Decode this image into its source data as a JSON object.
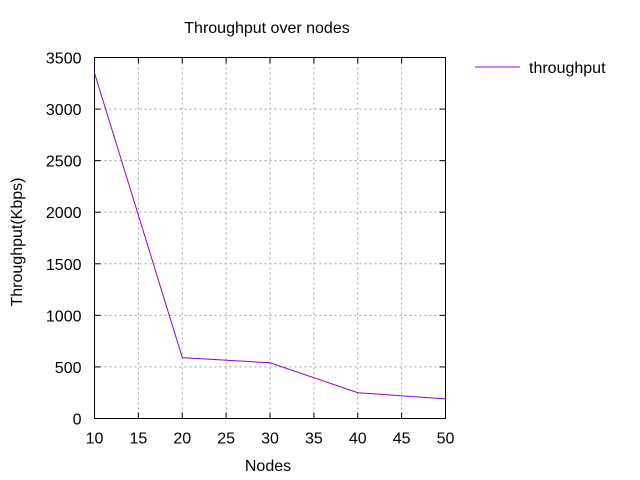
{
  "chart_data": {
    "type": "line",
    "title": "Throughput over nodes",
    "xlabel": "Nodes",
    "ylabel": "Throughput(Kbps)",
    "xlim": [
      10,
      50
    ],
    "ylim": [
      0,
      3500
    ],
    "x_ticks": [
      "10",
      "15",
      "20",
      "25",
      "30",
      "35",
      "40",
      "45",
      "50"
    ],
    "y_ticks": [
      "0",
      "500",
      "1000",
      "1500",
      "2000",
      "2500",
      "3000",
      "3500"
    ],
    "grid": true,
    "legend_position": "top-right",
    "series": [
      {
        "name": "throughput",
        "color": "#9400d3",
        "x": [
          10,
          20,
          30,
          40,
          50
        ],
        "y": [
          3350,
          590,
          540,
          250,
          190
        ]
      }
    ]
  }
}
